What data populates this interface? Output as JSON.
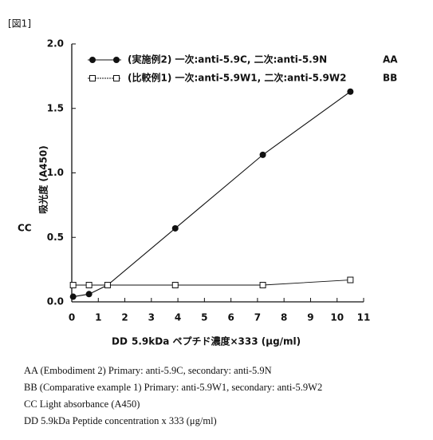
{
  "figure_label": "[図1]",
  "chart_data": {
    "type": "line",
    "x_label": "5.9kDa ペプチド濃度×333 (μg/ml)",
    "y_label": "吸光度 (A450)",
    "annotations": [
      "AA",
      "BB",
      "CC",
      "DD"
    ],
    "series": [
      {
        "name": "(実施例2) 一次:anti-5.9C, 二次:anti-5.9N",
        "color": "#111111",
        "marker": "circle",
        "x": [
          0.05,
          0.65,
          1.35,
          3.9,
          7.2,
          10.5
        ],
        "values": [
          0.04,
          0.06,
          0.13,
          0.57,
          1.14,
          1.63
        ]
      },
      {
        "name": "(比較例1) 一次:anti-5.9W1, 二次:anti-5.9W2",
        "color": "#111111",
        "marker": "square",
        "x": [
          0.05,
          0.65,
          1.35,
          3.9,
          7.2,
          10.5
        ],
        "values": [
          0.13,
          0.13,
          0.13,
          0.13,
          0.13,
          0.17
        ]
      }
    ],
    "xlim": [
      0,
      11
    ],
    "xticks": [
      0,
      1,
      2,
      3,
      4,
      5,
      6,
      7,
      8,
      9,
      10,
      11
    ],
    "ylim": [
      0,
      2
    ],
    "yticks": [
      {
        "value": 0,
        "label": "0.0"
      },
      0.5,
      {
        "value": 1,
        "label": "1.0"
      },
      1.5,
      {
        "value": 2,
        "label": "2.0"
      }
    ],
    "grid": false
  },
  "notes": [
    "AA (Embodiment 2) Primary: anti-5.9C, secondary: anti-5.9N",
    "BB (Comparative example 1) Primary: anti-5.9W1, secondary: anti-5.9W2",
    "CC Light absorbance (A450)",
    "DD 5.9kDa Peptide concentration x 333 (μg/ml)"
  ]
}
